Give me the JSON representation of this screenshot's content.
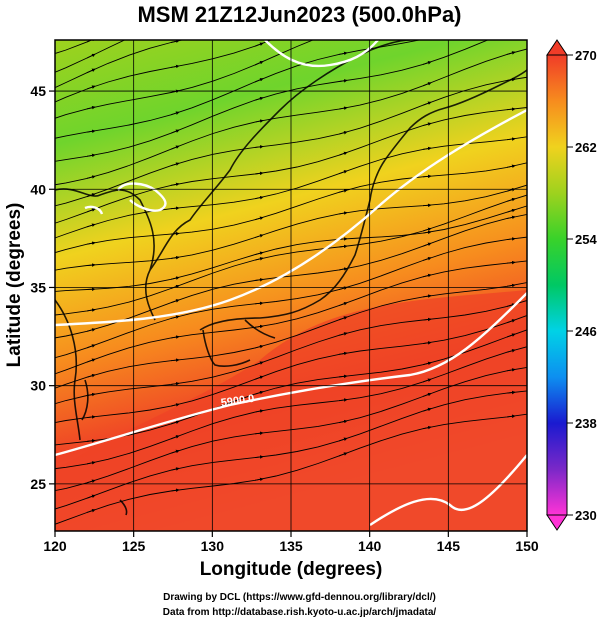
{
  "title": "MSM 21Z12Jun2023 (500.0hPa)",
  "x_axis": {
    "label": "Longitude (degrees)",
    "ticks": [
      "120",
      "125",
      "130",
      "135",
      "140",
      "145",
      "150"
    ]
  },
  "y_axis": {
    "label": "Latitude  (degrees)",
    "ticks": [
      "25",
      "30",
      "35",
      "40",
      "45"
    ]
  },
  "colorbar": {
    "ticks": [
      "230",
      "238",
      "246",
      "254",
      "262",
      "270"
    ],
    "gradient_colors": [
      "#ff33d6",
      "#7a28c8",
      "#1a1ad0",
      "#0d8ff0",
      "#00d2e6",
      "#00c864",
      "#39d22a",
      "#9ed21e",
      "#f0d21e",
      "#f78c1e",
      "#f03c28"
    ]
  },
  "map": {
    "contour_label": "5900.0",
    "extent": {
      "lon": [
        120,
        150
      ],
      "lat": [
        22.6,
        47.6
      ]
    },
    "field_colors": {
      "north": "#66d42a",
      "middle": "#f2b21e",
      "south": "#ef4326"
    }
  },
  "credits": {
    "line1": "Drawing by DCL (https://www.gfd-dennou.org/library/dcl/)",
    "line2": "Data from http://database.rish.kyoto-u.ac.jp/arch/jmadata/"
  }
}
